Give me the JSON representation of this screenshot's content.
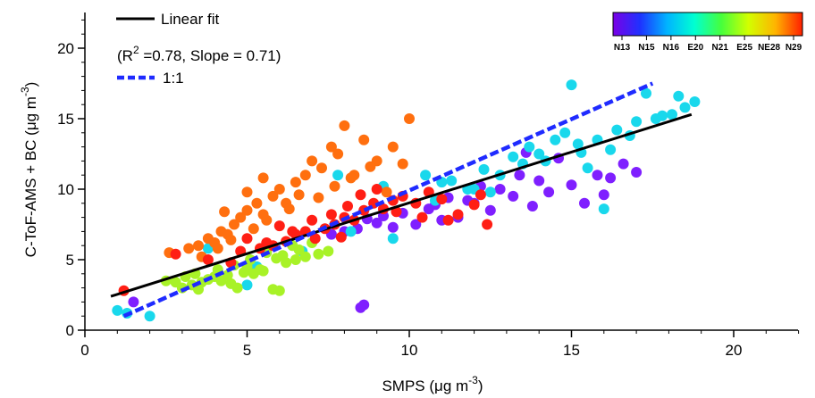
{
  "chart_data": {
    "type": "scatter",
    "title": "",
    "xlabel": "SMPS (μg m⁻³)",
    "ylabel": "C-ToF-AMS + BC (μg m⁻³)",
    "xlim": [
      0,
      22
    ],
    "ylim": [
      0,
      22
    ],
    "x_ticks": [
      "0",
      "5",
      "10",
      "15",
      "20"
    ],
    "y_ticks": [
      "0",
      "5",
      "10",
      "15",
      "20"
    ],
    "grid": false,
    "legend": [
      {
        "label": "Linear fit",
        "style": "solid",
        "color": "#000000"
      },
      {
        "label": "1:1",
        "style": "dashed",
        "color": "#1f2bff"
      }
    ],
    "fit_annotation": "(R² =0.78, Slope = 0.71)",
    "linear_fit": {
      "x": [
        0.8,
        18.7
      ],
      "y": [
        2.4,
        15.3
      ]
    },
    "one_to_one": {
      "x": [
        1.2,
        17.5
      ],
      "y": [
        1.0,
        17.5
      ]
    },
    "colorbar": {
      "labels": [
        "N13",
        "N15",
        "N16",
        "E20",
        "N21",
        "E25",
        "NE28",
        "N29"
      ],
      "colors": [
        "#7a00e6",
        "#1e32ff",
        "#00b4ff",
        "#00ffd2",
        "#46ff3c",
        "#d2ff00",
        "#ffb400",
        "#ff1e00"
      ]
    },
    "series": [
      {
        "color": "#7f1fff",
        "x": [
          13.2,
          14.3,
          15.0,
          15.8,
          16.2,
          17.0,
          13.8,
          12.5,
          11.5,
          11.0,
          10.2,
          9.5,
          9.0,
          8.4,
          8.0,
          9.8,
          10.6,
          12.0,
          14.6,
          16.6,
          13.4,
          12.8,
          11.8,
          10.8,
          9.2,
          8.7,
          15.4,
          16.0,
          14.0,
          12.2,
          8.6,
          8.5,
          1.5,
          7.6,
          11.2,
          13.6
        ],
        "y": [
          9.5,
          9.8,
          10.3,
          11.0,
          10.8,
          11.2,
          8.8,
          8.5,
          8.0,
          7.8,
          7.5,
          7.3,
          7.6,
          7.2,
          7.0,
          8.3,
          8.6,
          9.0,
          12.2,
          11.8,
          11.0,
          10.0,
          9.2,
          8.9,
          8.1,
          7.9,
          9.0,
          9.6,
          10.6,
          10.2,
          1.8,
          1.6,
          2.0,
          6.8,
          9.4,
          12.6
        ]
      },
      {
        "color": "#19d8ec",
        "x": [
          1.0,
          1.3,
          2.0,
          3.8,
          6.7,
          7.8,
          9.5,
          10.5,
          11.0,
          12.0,
          12.5,
          13.2,
          13.7,
          14.0,
          14.5,
          14.8,
          15.2,
          15.8,
          16.4,
          17.0,
          17.6,
          18.1,
          18.5,
          18.8,
          11.8,
          10.8,
          15.0,
          16.0,
          12.8,
          14.2,
          16.2,
          17.3,
          15.5,
          9.2,
          8.2,
          5.0,
          5.3,
          13.5,
          16.8,
          17.8,
          18.3,
          15.3,
          12.3,
          11.3
        ],
        "y": [
          1.4,
          1.2,
          1.0,
          5.8,
          5.6,
          11.0,
          6.5,
          11.0,
          10.5,
          10.0,
          9.8,
          12.3,
          13.0,
          12.5,
          13.5,
          14.0,
          13.2,
          13.5,
          14.2,
          14.8,
          15.0,
          15.3,
          15.8,
          16.2,
          10.0,
          9.2,
          17.4,
          8.6,
          11.0,
          12.0,
          12.8,
          16.8,
          11.5,
          10.2,
          7.0,
          3.2,
          4.5,
          11.8,
          13.8,
          15.2,
          16.6,
          12.6,
          11.4,
          10.6
        ]
      },
      {
        "color": "#a8f227",
        "x": [
          2.5,
          3.0,
          3.3,
          3.6,
          3.8,
          4.0,
          4.2,
          4.5,
          4.7,
          5.0,
          5.2,
          5.5,
          5.8,
          6.0,
          6.2,
          6.5,
          6.8,
          7.2,
          7.5,
          3.1,
          3.4,
          4.1,
          4.6,
          5.1,
          5.6,
          6.1,
          6.6,
          2.8,
          3.5,
          4.4,
          4.9,
          5.4,
          5.9,
          6.4,
          7.0
        ],
        "y": [
          3.5,
          3.0,
          3.2,
          3.4,
          3.6,
          3.8,
          3.5,
          3.3,
          3.0,
          4.5,
          4.0,
          4.2,
          2.9,
          2.8,
          4.8,
          5.0,
          5.2,
          5.4,
          5.6,
          3.8,
          4.0,
          4.3,
          4.6,
          5.0,
          5.5,
          5.3,
          5.7,
          3.4,
          2.9,
          3.9,
          4.1,
          4.3,
          5.1,
          6.0,
          6.2
        ]
      },
      {
        "color": "#ff6f0f",
        "x": [
          2.6,
          3.2,
          3.5,
          3.8,
          4.0,
          4.2,
          4.4,
          4.6,
          4.8,
          5.0,
          5.3,
          5.5,
          5.8,
          6.0,
          6.2,
          6.5,
          6.8,
          7.0,
          7.3,
          7.6,
          7.8,
          8.0,
          8.3,
          8.6,
          9.0,
          9.5,
          10.0,
          3.6,
          4.1,
          4.5,
          5.2,
          5.6,
          6.3,
          7.2,
          7.7,
          8.2,
          8.8,
          9.3,
          5.0,
          5.5,
          6.6,
          4.3,
          9.8
        ],
        "y": [
          5.5,
          5.8,
          6.0,
          6.5,
          6.2,
          7.0,
          6.8,
          7.5,
          8.0,
          8.5,
          9.0,
          8.2,
          9.5,
          10.0,
          9.0,
          10.5,
          11.0,
          12.0,
          11.5,
          13.0,
          12.5,
          14.5,
          11.0,
          13.5,
          12.0,
          13.0,
          15.0,
          5.2,
          5.8,
          6.4,
          7.2,
          7.8,
          8.6,
          9.4,
          10.2,
          10.8,
          11.6,
          9.8,
          9.8,
          10.8,
          9.6,
          8.4,
          11.8
        ]
      },
      {
        "color": "#ff1e14",
        "x": [
          1.2,
          2.8,
          3.8,
          4.5,
          5.0,
          5.4,
          5.8,
          6.2,
          6.5,
          6.8,
          7.1,
          7.4,
          7.7,
          8.0,
          8.3,
          8.6,
          8.9,
          9.2,
          9.5,
          9.8,
          10.2,
          10.6,
          11.0,
          11.5,
          12.0,
          12.4,
          5.6,
          6.0,
          6.4,
          7.0,
          7.6,
          8.1,
          8.5,
          9.0,
          9.6,
          10.4,
          11.2,
          12.2,
          4.8,
          7.9
        ],
        "y": [
          2.8,
          5.4,
          5.0,
          4.8,
          6.5,
          5.8,
          6.0,
          6.3,
          6.8,
          7.0,
          6.5,
          7.2,
          7.5,
          8.0,
          7.8,
          8.5,
          9.0,
          8.6,
          9.2,
          9.5,
          9.0,
          9.8,
          9.3,
          8.2,
          8.9,
          7.5,
          6.2,
          7.4,
          7.0,
          7.8,
          8.2,
          8.8,
          9.6,
          10.0,
          8.4,
          8.0,
          7.8,
          9.6,
          5.6,
          6.6
        ]
      }
    ]
  }
}
